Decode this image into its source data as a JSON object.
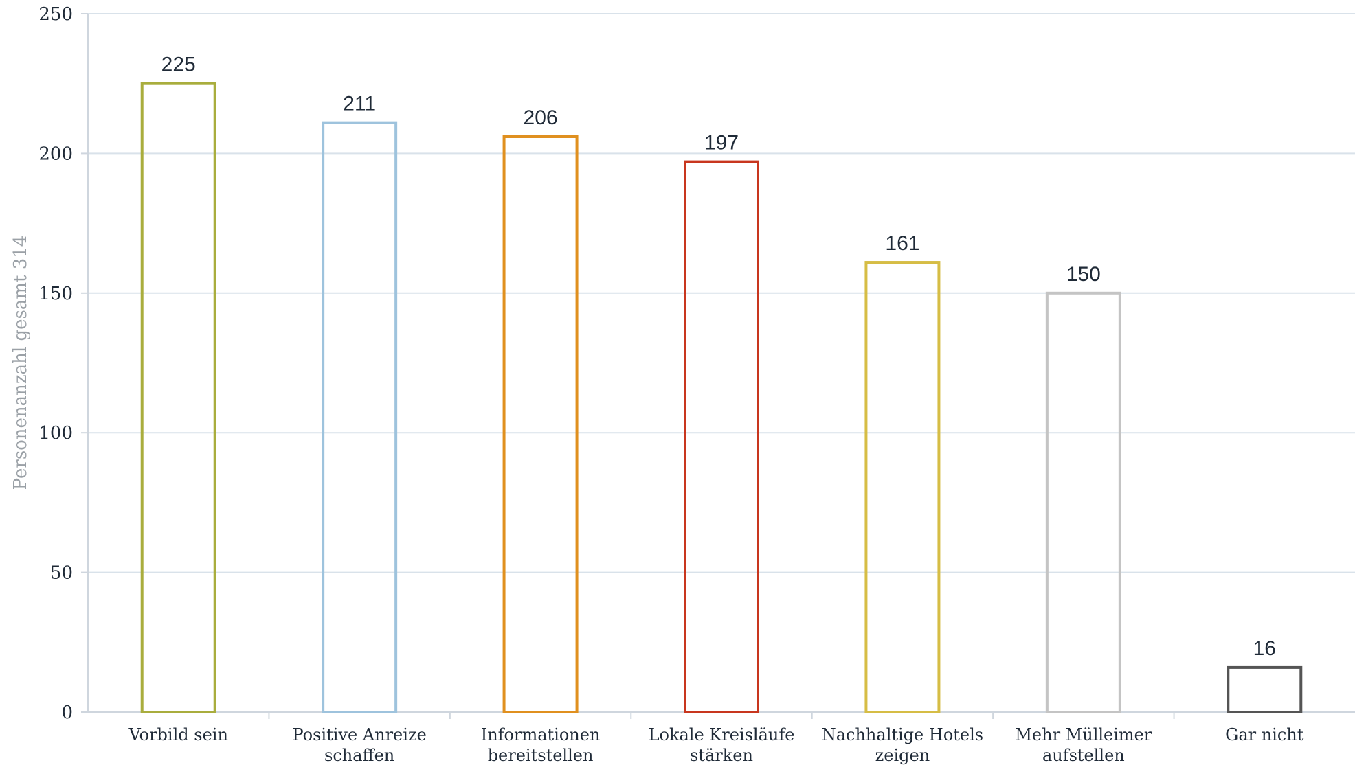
{
  "chart_data": {
    "type": "bar",
    "title": "",
    "xlabel": "",
    "ylabel": "Personenanzahl gesamt 314",
    "ylim": [
      0,
      250
    ],
    "yticks": [
      0,
      50,
      100,
      150,
      200,
      250
    ],
    "grid": true,
    "legend": "none",
    "categories": [
      [
        "Vorbild sein"
      ],
      [
        "Positive Anreize",
        "schaffen"
      ],
      [
        "Informationen",
        "bereitstellen"
      ],
      [
        "Lokale Kreisläufe",
        "stärken"
      ],
      [
        "Nachhaltige Hotels",
        "zeigen"
      ],
      [
        "Mehr Mülleimer",
        "aufstellen"
      ],
      [
        "Gar nicht"
      ]
    ],
    "values": [
      225,
      211,
      206,
      197,
      161,
      150,
      16
    ],
    "colors": [
      "#a9ad3d",
      "#9ec3dd",
      "#e0901f",
      "#c8361e",
      "#d6bd45",
      "#c4c4c4",
      "#555555"
    ]
  }
}
